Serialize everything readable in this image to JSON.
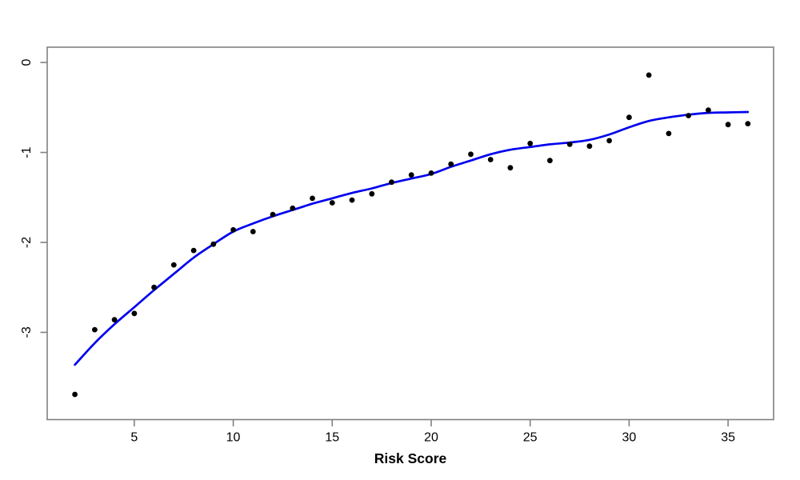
{
  "figure": {
    "background": "#ffffff",
    "axis_color": "#808080",
    "label_color": "#000000"
  },
  "chart_data": {
    "type": "scatter",
    "title": "",
    "xlabel": "Risk Score",
    "ylabel": "",
    "grid": false,
    "legend": "none",
    "xlim": [
      0.6,
      37.3
    ],
    "ylim": [
      -3.97,
      0.17
    ],
    "x_ticks": [
      5,
      10,
      15,
      20,
      25,
      30,
      35
    ],
    "y_ticks": [
      0,
      -1,
      -2,
      -3
    ],
    "series": [
      {
        "name": "observed-points",
        "type": "scatter",
        "color": "#000000",
        "marker": "filled-circle",
        "x": [
          2,
          3,
          4,
          5,
          6,
          7,
          8,
          9,
          10,
          11,
          12,
          13,
          14,
          15,
          16,
          17,
          18,
          19,
          20,
          21,
          22,
          23,
          24,
          25,
          26,
          27,
          28,
          29,
          30,
          31,
          32,
          33,
          34,
          35,
          36
        ],
        "y": [
          -3.69,
          -2.97,
          -2.86,
          -2.79,
          -2.5,
          -2.25,
          -2.09,
          -2.02,
          -1.86,
          -1.88,
          -1.69,
          -1.62,
          -1.51,
          -1.56,
          -1.53,
          -1.46,
          -1.33,
          -1.25,
          -1.23,
          -1.13,
          -1.02,
          -1.08,
          -1.17,
          -0.9,
          -1.09,
          -0.91,
          -0.93,
          -0.87,
          -0.61,
          -0.14,
          -0.79,
          -0.59,
          -0.53,
          -0.69,
          -0.68
        ]
      },
      {
        "name": "smooth-fit-curve",
        "type": "line",
        "color": "#0000ee",
        "x": [
          2,
          3,
          4,
          5,
          6,
          7,
          8,
          9,
          10,
          11,
          12,
          13,
          14,
          15,
          16,
          17,
          18,
          19,
          20,
          21,
          22,
          23,
          24,
          25,
          26,
          27,
          28,
          29,
          30,
          31,
          32,
          33,
          34,
          35,
          36
        ],
        "y": [
          -3.36,
          -3.12,
          -2.91,
          -2.72,
          -2.53,
          -2.35,
          -2.17,
          -2.02,
          -1.88,
          -1.79,
          -1.71,
          -1.64,
          -1.57,
          -1.51,
          -1.45,
          -1.4,
          -1.34,
          -1.29,
          -1.24,
          -1.16,
          -1.09,
          -1.02,
          -0.97,
          -0.94,
          -0.91,
          -0.89,
          -0.86,
          -0.8,
          -0.72,
          -0.65,
          -0.61,
          -0.58,
          -0.56,
          -0.555,
          -0.55
        ]
      }
    ]
  }
}
